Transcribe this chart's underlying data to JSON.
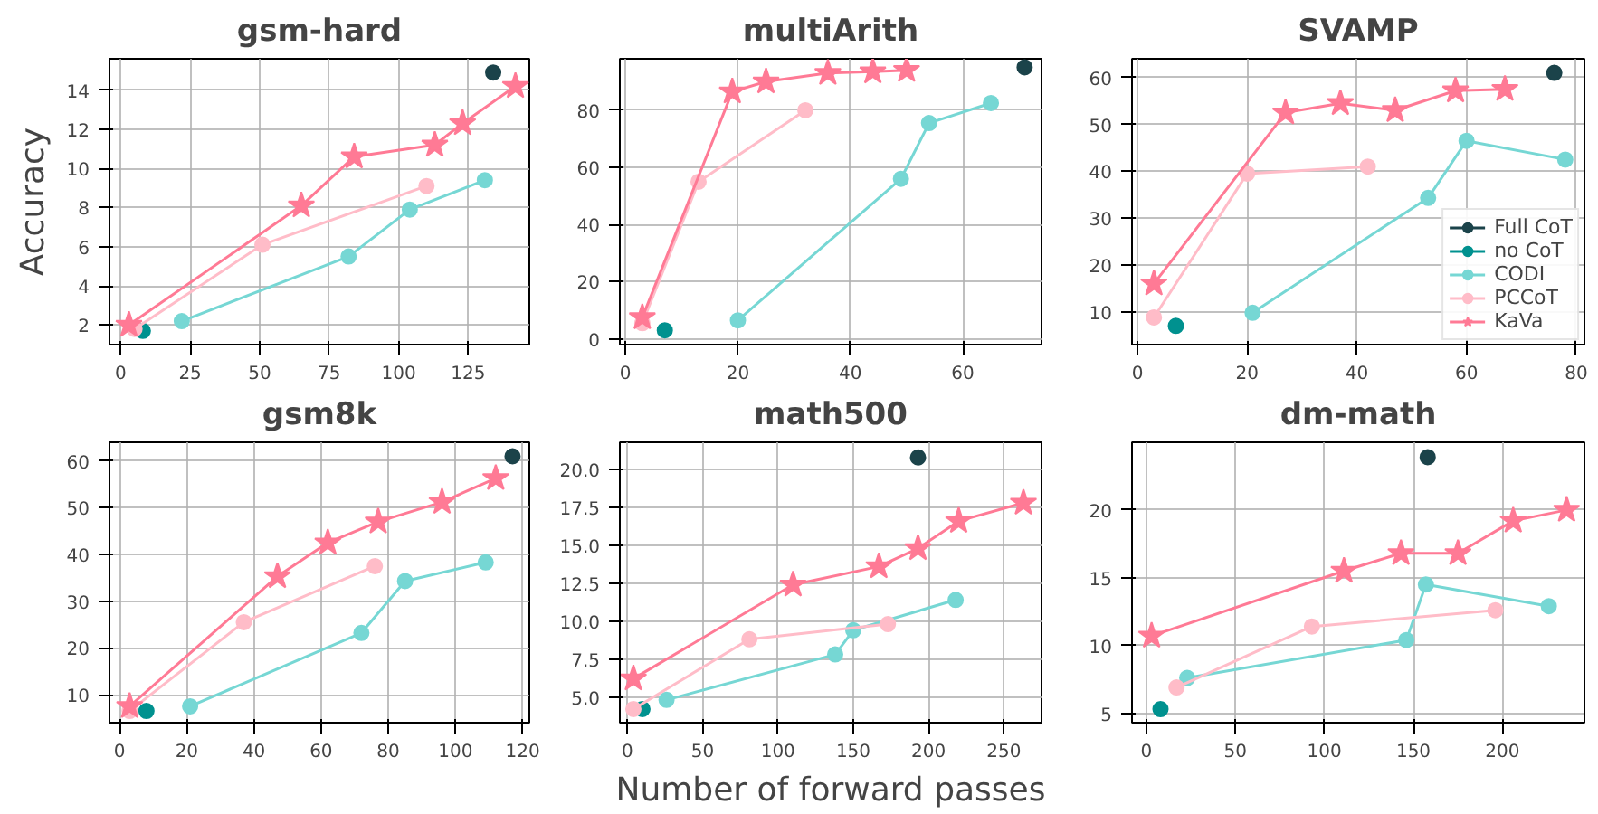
{
  "chart_data": [
    {
      "type": "line",
      "title": "gsm-hard",
      "ylabel": "Accuracy",
      "xlim": [
        -4,
        147
      ],
      "ylim": [
        1.0,
        15.6
      ],
      "xticks": [
        0,
        25,
        50,
        75,
        100,
        125
      ],
      "yticks": [
        2,
        4,
        6,
        8,
        10,
        12,
        14
      ],
      "grid": true,
      "legend": false,
      "line_style": "solid",
      "series": [
        {
          "color": "#1b434a",
          "marker": "circle",
          "x": [
            134
          ],
          "values": [
            14.9
          ]
        },
        {
          "color": "#00918f",
          "marker": "circle",
          "x": [
            8
          ],
          "values": [
            1.7
          ]
        },
        {
          "color": "#76d7d4",
          "marker": "circle",
          "x": [
            22,
            82,
            104,
            131
          ],
          "values": [
            2.2,
            5.5,
            7.9,
            9.4
          ]
        },
        {
          "color": "#ffbcc8",
          "marker": "circle",
          "x": [
            5,
            51,
            110
          ],
          "values": [
            1.8,
            6.1,
            9.1
          ]
        },
        {
          "color": "#ff7a95",
          "marker": "star",
          "x": [
            3,
            65,
            84,
            113,
            123,
            142
          ],
          "values": [
            2.0,
            8.1,
            10.6,
            11.2,
            12.3,
            14.2
          ]
        }
      ]
    },
    {
      "type": "line",
      "title": "multiArith",
      "xlim": [
        -1,
        74
      ],
      "ylim": [
        -2,
        98
      ],
      "xticks": [
        0,
        20,
        40,
        60
      ],
      "yticks": [
        0,
        20,
        40,
        60,
        80
      ],
      "grid": true,
      "legend": false,
      "line_style": "solid",
      "series": [
        {
          "color": "#1b434a",
          "marker": "circle",
          "x": [
            71
          ],
          "values": [
            95
          ]
        },
        {
          "color": "#00918f",
          "marker": "circle",
          "x": [
            7
          ],
          "values": [
            3
          ]
        },
        {
          "color": "#76d7d4",
          "marker": "circle",
          "x": [
            20,
            49,
            54,
            65
          ],
          "values": [
            6.5,
            56,
            75.5,
            82.5
          ]
        },
        {
          "color": "#ffbcc8",
          "marker": "circle",
          "x": [
            3,
            13,
            32
          ],
          "values": [
            5.5,
            55,
            80
          ]
        },
        {
          "color": "#ff7a95",
          "marker": "star",
          "x": [
            3,
            19,
            25,
            36,
            44,
            50
          ],
          "values": [
            7.5,
            86.5,
            90,
            93,
            93.5,
            94
          ]
        }
      ]
    },
    {
      "type": "line",
      "title": "SVAMP",
      "xlim": [
        -1,
        81.5
      ],
      "ylim": [
        3,
        64
      ],
      "xticks": [
        0,
        20,
        40,
        60,
        80
      ],
      "yticks": [
        10,
        20,
        30,
        40,
        50,
        60
      ],
      "grid": true,
      "legend": "bottom right",
      "line_style": "solid",
      "series": [
        {
          "name": "Full CoT",
          "color": "#1b434a",
          "marker": "circle",
          "x": [
            76
          ],
          "values": [
            61
          ]
        },
        {
          "name": "no CoT",
          "color": "#00918f",
          "marker": "circle",
          "x": [
            7
          ],
          "values": [
            7
          ]
        },
        {
          "name": "CODI",
          "color": "#76d7d4",
          "marker": "circle",
          "x": [
            21,
            53,
            60,
            78
          ],
          "values": [
            9.8,
            34.3,
            46.5,
            42.5
          ]
        },
        {
          "name": "PCCoT",
          "color": "#ffbcc8",
          "marker": "circle",
          "x": [
            3,
            20,
            42
          ],
          "values": [
            8.8,
            39.5,
            41
          ]
        },
        {
          "name": "KaVa",
          "color": "#ff7a95",
          "marker": "star",
          "x": [
            3,
            27,
            37,
            47,
            58,
            67
          ],
          "values": [
            16,
            52.5,
            54.5,
            53,
            57.2,
            57.5
          ]
        }
      ]
    },
    {
      "type": "line",
      "title": "gsm8k",
      "xlim": [
        -3,
        122
      ],
      "ylim": [
        4,
        64
      ],
      "xticks": [
        0,
        20,
        40,
        60,
        80,
        100,
        120
      ],
      "yticks": [
        10,
        20,
        30,
        40,
        50,
        60
      ],
      "grid": true,
      "legend": false,
      "line_style": "solid",
      "series": [
        {
          "color": "#1b434a",
          "marker": "circle",
          "x": [
            117
          ],
          "values": [
            61
          ]
        },
        {
          "color": "#00918f",
          "marker": "circle",
          "x": [
            8
          ],
          "values": [
            6.5
          ]
        },
        {
          "color": "#76d7d4",
          "marker": "circle",
          "x": [
            21,
            72,
            85,
            109
          ],
          "values": [
            7.5,
            23.2,
            34.3,
            38.3
          ]
        },
        {
          "color": "#ffbcc8",
          "marker": "circle",
          "x": [
            3,
            37,
            76
          ],
          "values": [
            6.5,
            25.5,
            37.5
          ]
        },
        {
          "color": "#ff7a95",
          "marker": "star",
          "x": [
            3,
            47,
            62,
            77,
            96,
            112
          ],
          "values": [
            7.5,
            35.3,
            42.5,
            47,
            51.2,
            56.3
          ]
        }
      ]
    },
    {
      "type": "line",
      "title": "math500",
      "xlabel": "Number of forward passes",
      "xlim": [
        -5,
        275
      ],
      "ylim": [
        3.3,
        21.8
      ],
      "xticks": [
        0,
        50,
        100,
        150,
        200,
        250
      ],
      "yticks": [
        {
          "value": 5,
          "label": "5.0"
        },
        {
          "value": 7.5,
          "label": "7.5"
        },
        {
          "value": 10,
          "label": "10.0"
        },
        {
          "value": 12.5,
          "label": "12.5"
        },
        {
          "value": 15,
          "label": "15.0"
        },
        {
          "value": 17.5,
          "label": "17.5"
        },
        {
          "value": 20,
          "label": "20.0"
        }
      ],
      "grid": true,
      "legend": false,
      "line_style": "solid",
      "series": [
        {
          "color": "#1b434a",
          "marker": "circle",
          "x": [
            193
          ],
          "values": [
            20.8
          ]
        },
        {
          "color": "#00918f",
          "marker": "circle",
          "x": [
            10
          ],
          "values": [
            4.2
          ]
        },
        {
          "color": "#76d7d4",
          "marker": "circle",
          "x": [
            26,
            138,
            150,
            218
          ],
          "values": [
            4.8,
            7.8,
            9.4,
            11.4
          ]
        },
        {
          "color": "#ffbcc8",
          "marker": "circle",
          "x": [
            4,
            81,
            173
          ],
          "values": [
            4.2,
            8.8,
            9.8
          ]
        },
        {
          "color": "#ff7a95",
          "marker": "star",
          "x": [
            4,
            110,
            167,
            193,
            220,
            263
          ],
          "values": [
            6.2,
            12.4,
            13.6,
            14.8,
            16.6,
            17.8
          ]
        }
      ]
    },
    {
      "type": "line",
      "title": "dm-math",
      "xlim": [
        -8,
        246
      ],
      "ylim": [
        4.3,
        25
      ],
      "xticks": [
        0,
        50,
        100,
        150,
        200
      ],
      "yticks": [
        5,
        10,
        15,
        20
      ],
      "grid": true,
      "legend": false,
      "line_style": "solid",
      "series": [
        {
          "color": "#1b434a",
          "marker": "circle",
          "x": [
            158
          ],
          "values": [
            23.9
          ]
        },
        {
          "color": "#00918f",
          "marker": "circle",
          "x": [
            8
          ],
          "values": [
            5.3
          ]
        },
        {
          "color": "#76d7d4",
          "marker": "circle",
          "x": [
            23,
            146,
            157,
            226
          ],
          "values": [
            7.6,
            10.4,
            14.5,
            12.9
          ]
        },
        {
          "color": "#ffbcc8",
          "marker": "circle",
          "x": [
            17,
            93,
            196
          ],
          "values": [
            6.9,
            11.4,
            12.6
          ]
        },
        {
          "color": "#ff7a95",
          "marker": "star",
          "x": [
            3,
            111,
            143,
            175,
            206,
            236
          ],
          "values": [
            10.7,
            15.5,
            16.8,
            16.8,
            19.2,
            20
          ]
        }
      ]
    }
  ]
}
